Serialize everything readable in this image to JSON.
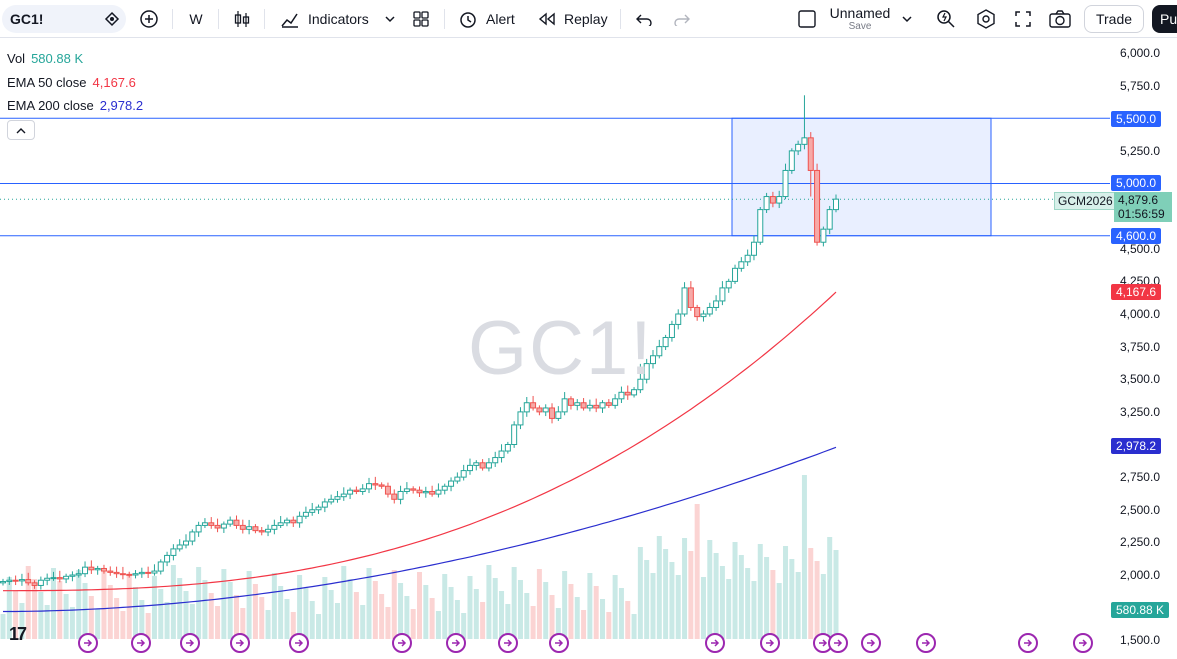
{
  "toolbar": {
    "symbol": "GC1!",
    "interval": "W",
    "indicators_label": "Indicators",
    "alert_label": "Alert",
    "replay_label": "Replay",
    "layout_name": "Unnamed",
    "save_label": "Save",
    "trade_label": "Trade",
    "publish_label": "Pu"
  },
  "legend": {
    "vol_label": "Vol",
    "vol_value": "580.88 K",
    "ema50_label": "EMA 50 close",
    "ema50_value": "4,167.6",
    "ema200_label": "EMA 200 close",
    "ema200_value": "2,978.2"
  },
  "watermark": "GC1!",
  "price_axis": {
    "ticks": [
      "6,000.0",
      "5,750.0",
      "5,500.0",
      "5,250.0",
      "5,000.0",
      "4,750.0",
      "4,500.0",
      "4,250.0",
      "4,000.0",
      "3,750.0",
      "3,500.0",
      "3,250.0",
      "3,000.0",
      "2,750.0",
      "2,500.0",
      "2,250.0",
      "2,000.0",
      "1,750.0",
      "1,500.0"
    ],
    "tick_values": [
      6000,
      5750,
      5500,
      5250,
      5000,
      4750,
      4500,
      4250,
      4000,
      3750,
      3500,
      3250,
      3000,
      2750,
      2500,
      2250,
      2000,
      1750,
      1500
    ],
    "tag_5500": "5,500.0",
    "tag_5000": "5,000.0",
    "tag_4600": "4,600.0",
    "ema50_tag": "4,167.6",
    "ema200_tag": "2,978.2",
    "vol_tag": "580.88 K",
    "contract": "GCM2026",
    "last_price": "4,879.6",
    "countdown": "01:56:59"
  },
  "colors": {
    "up": "#26a69a",
    "down": "#ef5350",
    "ema50": "#f23645",
    "ema200": "#2a2ecf",
    "hline": "#2962ff",
    "event": "#9c27b0"
  },
  "chart_data": {
    "type": "candlestick",
    "hlines": [
      5500,
      5000,
      4600
    ],
    "zone": {
      "top": 5500,
      "bottom": 4600
    },
    "closes": [
      1950,
      1960,
      1955,
      1965,
      1940,
      1920,
      1960,
      1975,
      1980,
      1970,
      1990,
      2000,
      2010,
      2060,
      2040,
      2050,
      2030,
      2020,
      2010,
      2005,
      2000,
      2010,
      2020,
      2015,
      2030,
      2100,
      2150,
      2200,
      2230,
      2260,
      2330,
      2380,
      2400,
      2380,
      2360,
      2390,
      2420,
      2380,
      2350,
      2370,
      2340,
      2330,
      2350,
      2380,
      2400,
      2420,
      2400,
      2450,
      2480,
      2500,
      2520,
      2560,
      2580,
      2600,
      2620,
      2650,
      2640,
      2660,
      2700,
      2690,
      2680,
      2620,
      2580,
      2640,
      2660,
      2650,
      2630,
      2640,
      2620,
      2650,
      2680,
      2720,
      2750,
      2800,
      2840,
      2860,
      2820,
      2860,
      2900,
      2950,
      3000,
      3150,
      3250,
      3320,
      3280,
      3250,
      3280,
      3200,
      3250,
      3350,
      3300,
      3320,
      3280,
      3300,
      3280,
      3320,
      3300,
      3350,
      3400,
      3380,
      3420,
      3500,
      3620,
      3680,
      3750,
      3820,
      3920,
      4000,
      4200,
      4050,
      3980,
      4000,
      4050,
      4100,
      4200,
      4250,
      4350,
      4400,
      4450,
      4550,
      4800,
      4900,
      4850,
      4900,
      5100,
      5250,
      5300,
      5350,
      5100,
      4550,
      4650,
      4800,
      4880
    ],
    "ema50_range": [
      1880,
      4167.6
    ],
    "ema200_range": [
      1720,
      2978.2
    ],
    "volume": {
      "last": "580.88 K"
    }
  }
}
